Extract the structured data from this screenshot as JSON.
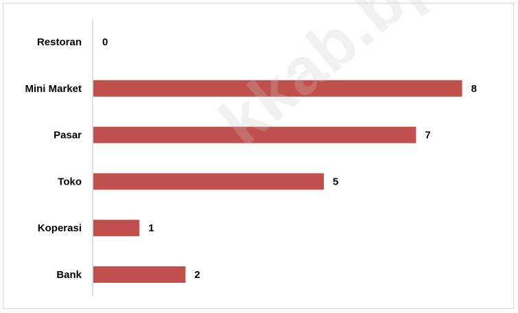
{
  "chart_data": {
    "type": "bar",
    "orientation": "horizontal",
    "categories": [
      "Restoran",
      "Mini Market",
      "Pasar",
      "Toko",
      "Koperasi",
      "Bank"
    ],
    "values": [
      0,
      8,
      7,
      5,
      1,
      2
    ],
    "title": "",
    "xlabel": "",
    "ylabel": "",
    "xlim": [
      0,
      8.5
    ],
    "grid": false,
    "legend": "none",
    "bar_color": "#c0504d",
    "axis_color": "#bfbfbf"
  },
  "watermark": "kkab.bps.go.id"
}
